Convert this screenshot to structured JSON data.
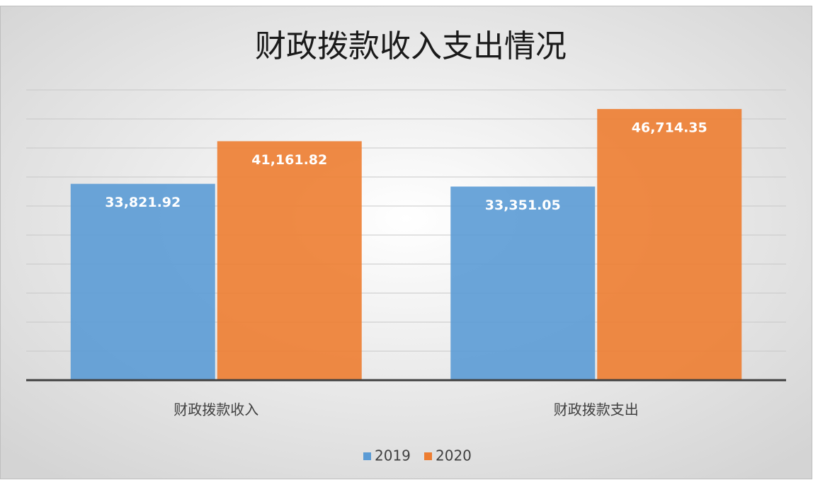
{
  "chart_data": {
    "type": "bar",
    "title": "财政拨款收入支出情况",
    "categories": [
      "财政拨款收入",
      "财政拨款支出"
    ],
    "series": [
      {
        "name": "2019",
        "color": "#5b9bd5",
        "values": [
          33821.92,
          33351.05
        ],
        "value_labels": [
          "33,821.92",
          "33,351.05"
        ]
      },
      {
        "name": "2020",
        "color": "#ed7d31",
        "values": [
          41161.82,
          46714.35
        ],
        "value_labels": [
          "41,161.82",
          "46,714.35"
        ]
      }
    ],
    "ylim": [
      0,
      50000
    ],
    "yticks": [
      0,
      5000,
      10000,
      15000,
      20000,
      25000,
      30000,
      35000,
      40000,
      45000,
      50000
    ],
    "grid": true,
    "legend": "bottom"
  }
}
